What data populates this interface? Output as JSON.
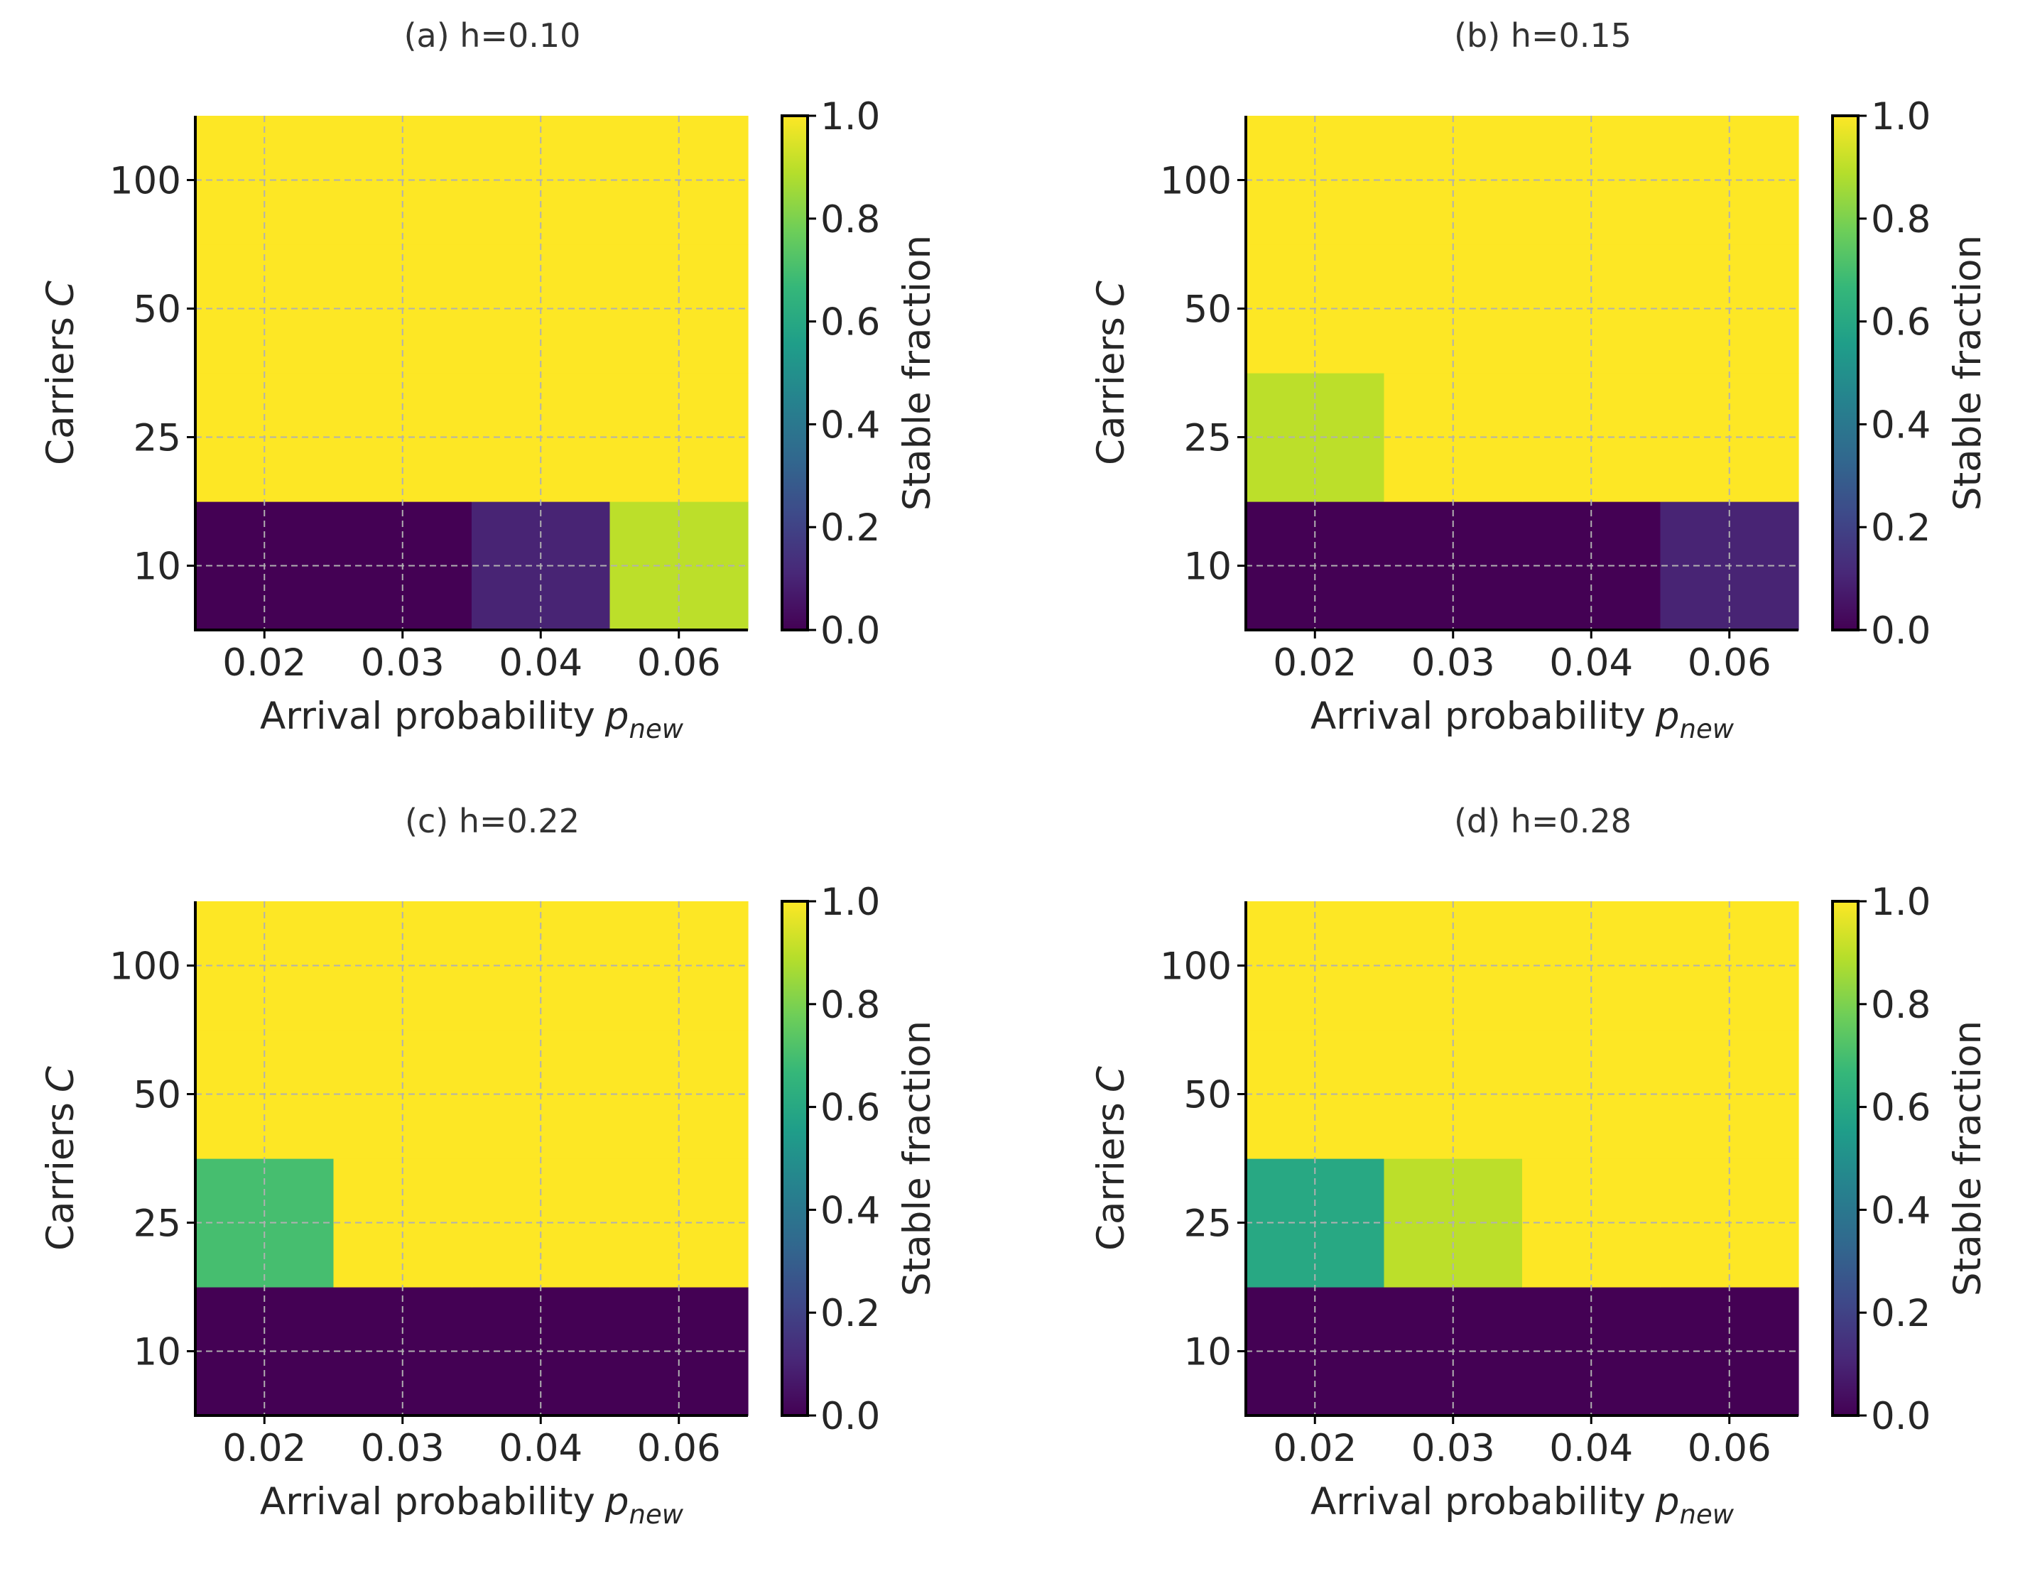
{
  "chart_data": [
    {
      "type": "heatmap",
      "title": "(a) h=0.10",
      "xlabel": "Arrival probability",
      "xlabel_sub": "new",
      "xlabel_var": "p",
      "ylabel": "Carriers",
      "ylabel_var": "C",
      "x": [
        "0.02",
        "0.03",
        "0.04",
        "0.06"
      ],
      "y": [
        "10",
        "25",
        "50",
        "100"
      ],
      "values": [
        [
          0.0,
          0.0,
          0.1,
          0.9
        ],
        [
          1.0,
          1.0,
          1.0,
          1.0
        ],
        [
          1.0,
          1.0,
          1.0,
          1.0
        ],
        [
          1.0,
          1.0,
          1.0,
          1.0
        ]
      ],
      "colorbar": {
        "label": "Stable fraction",
        "range": [
          0.0,
          1.0
        ],
        "ticks": [
          "0.0",
          "0.2",
          "0.4",
          "0.6",
          "0.8",
          "1.0"
        ]
      },
      "grid": true
    },
    {
      "type": "heatmap",
      "title": "(b) h=0.15",
      "xlabel": "Arrival probability",
      "xlabel_sub": "new",
      "xlabel_var": "p",
      "ylabel": "Carriers",
      "ylabel_var": "C",
      "x": [
        "0.02",
        "0.03",
        "0.04",
        "0.06"
      ],
      "y": [
        "10",
        "25",
        "50",
        "100"
      ],
      "values": [
        [
          0.0,
          0.0,
          0.0,
          0.1
        ],
        [
          0.9,
          1.0,
          1.0,
          1.0
        ],
        [
          1.0,
          1.0,
          1.0,
          1.0
        ],
        [
          1.0,
          1.0,
          1.0,
          1.0
        ]
      ],
      "colorbar": {
        "label": "Stable fraction",
        "range": [
          0.0,
          1.0
        ],
        "ticks": [
          "0.0",
          "0.2",
          "0.4",
          "0.6",
          "0.8",
          "1.0"
        ]
      },
      "grid": true
    },
    {
      "type": "heatmap",
      "title": "(c) h=0.22",
      "xlabel": "Arrival probability",
      "xlabel_sub": "new",
      "xlabel_var": "p",
      "ylabel": "Carriers",
      "ylabel_var": "C",
      "x": [
        "0.02",
        "0.03",
        "0.04",
        "0.06"
      ],
      "y": [
        "10",
        "25",
        "50",
        "100"
      ],
      "values": [
        [
          0.0,
          0.0,
          0.0,
          0.0
        ],
        [
          0.7,
          1.0,
          1.0,
          1.0
        ],
        [
          1.0,
          1.0,
          1.0,
          1.0
        ],
        [
          1.0,
          1.0,
          1.0,
          1.0
        ]
      ],
      "colorbar": {
        "label": "Stable fraction",
        "range": [
          0.0,
          1.0
        ],
        "ticks": [
          "0.0",
          "0.2",
          "0.4",
          "0.6",
          "0.8",
          "1.0"
        ]
      },
      "grid": true
    },
    {
      "type": "heatmap",
      "title": "(d) h=0.28",
      "xlabel": "Arrival probability",
      "xlabel_sub": "new",
      "xlabel_var": "p",
      "ylabel": "Carriers",
      "ylabel_var": "C",
      "x": [
        "0.02",
        "0.03",
        "0.04",
        "0.06"
      ],
      "y": [
        "10",
        "25",
        "50",
        "100"
      ],
      "values": [
        [
          0.0,
          0.0,
          0.0,
          0.0
        ],
        [
          0.6,
          0.9,
          1.0,
          1.0
        ],
        [
          1.0,
          1.0,
          1.0,
          1.0
        ],
        [
          1.0,
          1.0,
          1.0,
          1.0
        ]
      ],
      "colorbar": {
        "label": "Stable fraction",
        "range": [
          0.0,
          1.0
        ],
        "ticks": [
          "0.0",
          "0.2",
          "0.4",
          "0.6",
          "0.8",
          "1.0"
        ]
      },
      "grid": true
    }
  ],
  "colormap": {
    "name": "viridis",
    "stops": [
      "#440154",
      "#482878",
      "#3e4989",
      "#31688e",
      "#26828e",
      "#1f9e89",
      "#35b779",
      "#6ece58",
      "#b5de2b",
      "#fde725"
    ]
  }
}
